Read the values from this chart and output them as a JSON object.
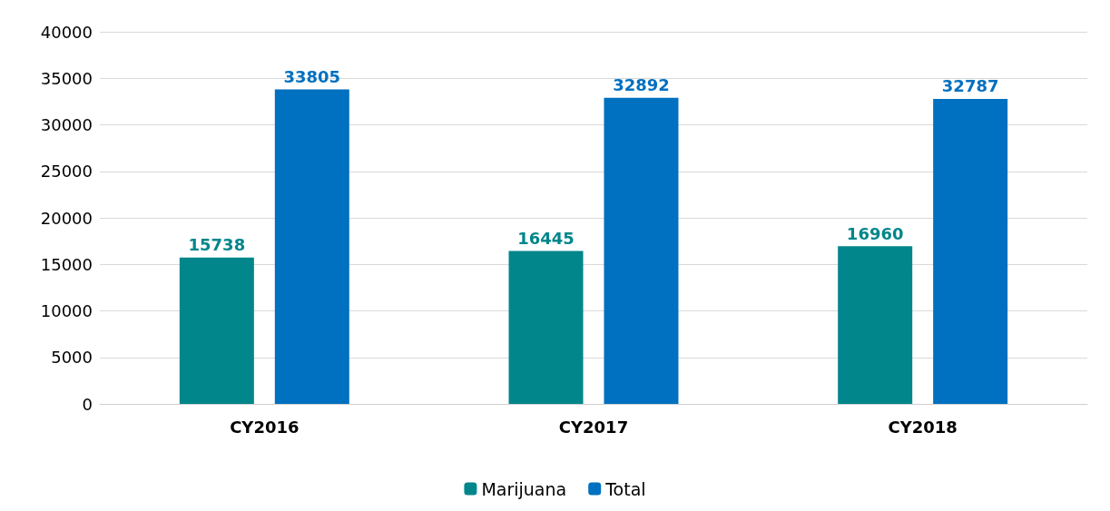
{
  "chart_data": {
    "type": "bar",
    "categories": [
      "CY2016",
      "CY2017",
      "CY2018"
    ],
    "series": [
      {
        "name": "Marijuana",
        "color": "#00868b",
        "values": [
          15738,
          16445,
          16960
        ]
      },
      {
        "name": "Total",
        "color": "#0070c0",
        "values": [
          33805,
          32892,
          32787
        ]
      }
    ],
    "ylim": [
      0,
      40000
    ],
    "yticks": [
      0,
      5000,
      10000,
      15000,
      20000,
      25000,
      30000,
      35000,
      40000
    ],
    "grid": "y",
    "legend": "bottom",
    "data_labels": true
  }
}
